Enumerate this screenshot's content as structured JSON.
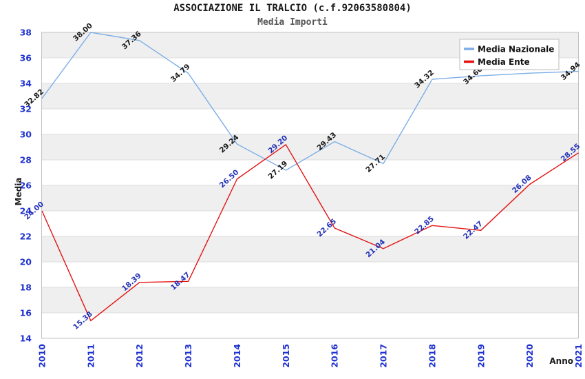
{
  "chart_data": {
    "type": "line",
    "title": "ASSOCIAZIONE IL TRALCIO (c.f.92063580804)",
    "subtitle": "Media Importi",
    "xlabel": "Anno",
    "ylabel": "Media",
    "x": [
      "2010",
      "2011",
      "2012",
      "2013",
      "2014",
      "2015",
      "2016",
      "2017",
      "2018",
      "2019",
      "2020",
      "2021"
    ],
    "ylim": [
      14,
      38
    ],
    "ytick_step": 2,
    "grid": "horizontal-gridlines-with-alternating-bands",
    "legend_position": "top-right",
    "colors": {
      "background": "#ffffff",
      "band_gray": "#efefef",
      "gridline": "#dcdcdc",
      "plot_border": "#c0c0c0",
      "tick_label_blue": "#2032cf",
      "title": "#1a1a1a",
      "subtitle": "#555555",
      "legend_text": "#111111",
      "legend_border": "#bbbbbb"
    },
    "series": [
      {
        "name": "Media Nazionale",
        "color": "#7caee6",
        "label_color": "#1a1a1a",
        "values": [
          32.82,
          38.0,
          37.36,
          34.79,
          29.24,
          27.19,
          29.43,
          27.71,
          34.32,
          34.6,
          34.8,
          34.94
        ],
        "labels": [
          "32.82",
          "38.00",
          "37.36",
          "34.79",
          "29.24",
          "27.19",
          "29.43",
          "27.71",
          "34.32",
          "34.60",
          null,
          "34.94"
        ],
        "note": "2019 label mostly hidden and 2020 label hidden behind the legend box; 2019/2020 values estimated from line position"
      },
      {
        "name": "Media Ente",
        "color": "#e51212",
        "label_color": "#2433b8",
        "values": [
          24.0,
          15.38,
          18.39,
          18.47,
          26.5,
          29.2,
          22.65,
          21.04,
          22.85,
          22.47,
          26.08,
          28.55
        ],
        "labels": [
          "24.00",
          "15.38",
          "18.39",
          "18.47",
          "26.50",
          "29.20",
          "22.65",
          "21.04",
          "22.85",
          "22.47",
          "26.08",
          "28.55"
        ]
      }
    ]
  }
}
